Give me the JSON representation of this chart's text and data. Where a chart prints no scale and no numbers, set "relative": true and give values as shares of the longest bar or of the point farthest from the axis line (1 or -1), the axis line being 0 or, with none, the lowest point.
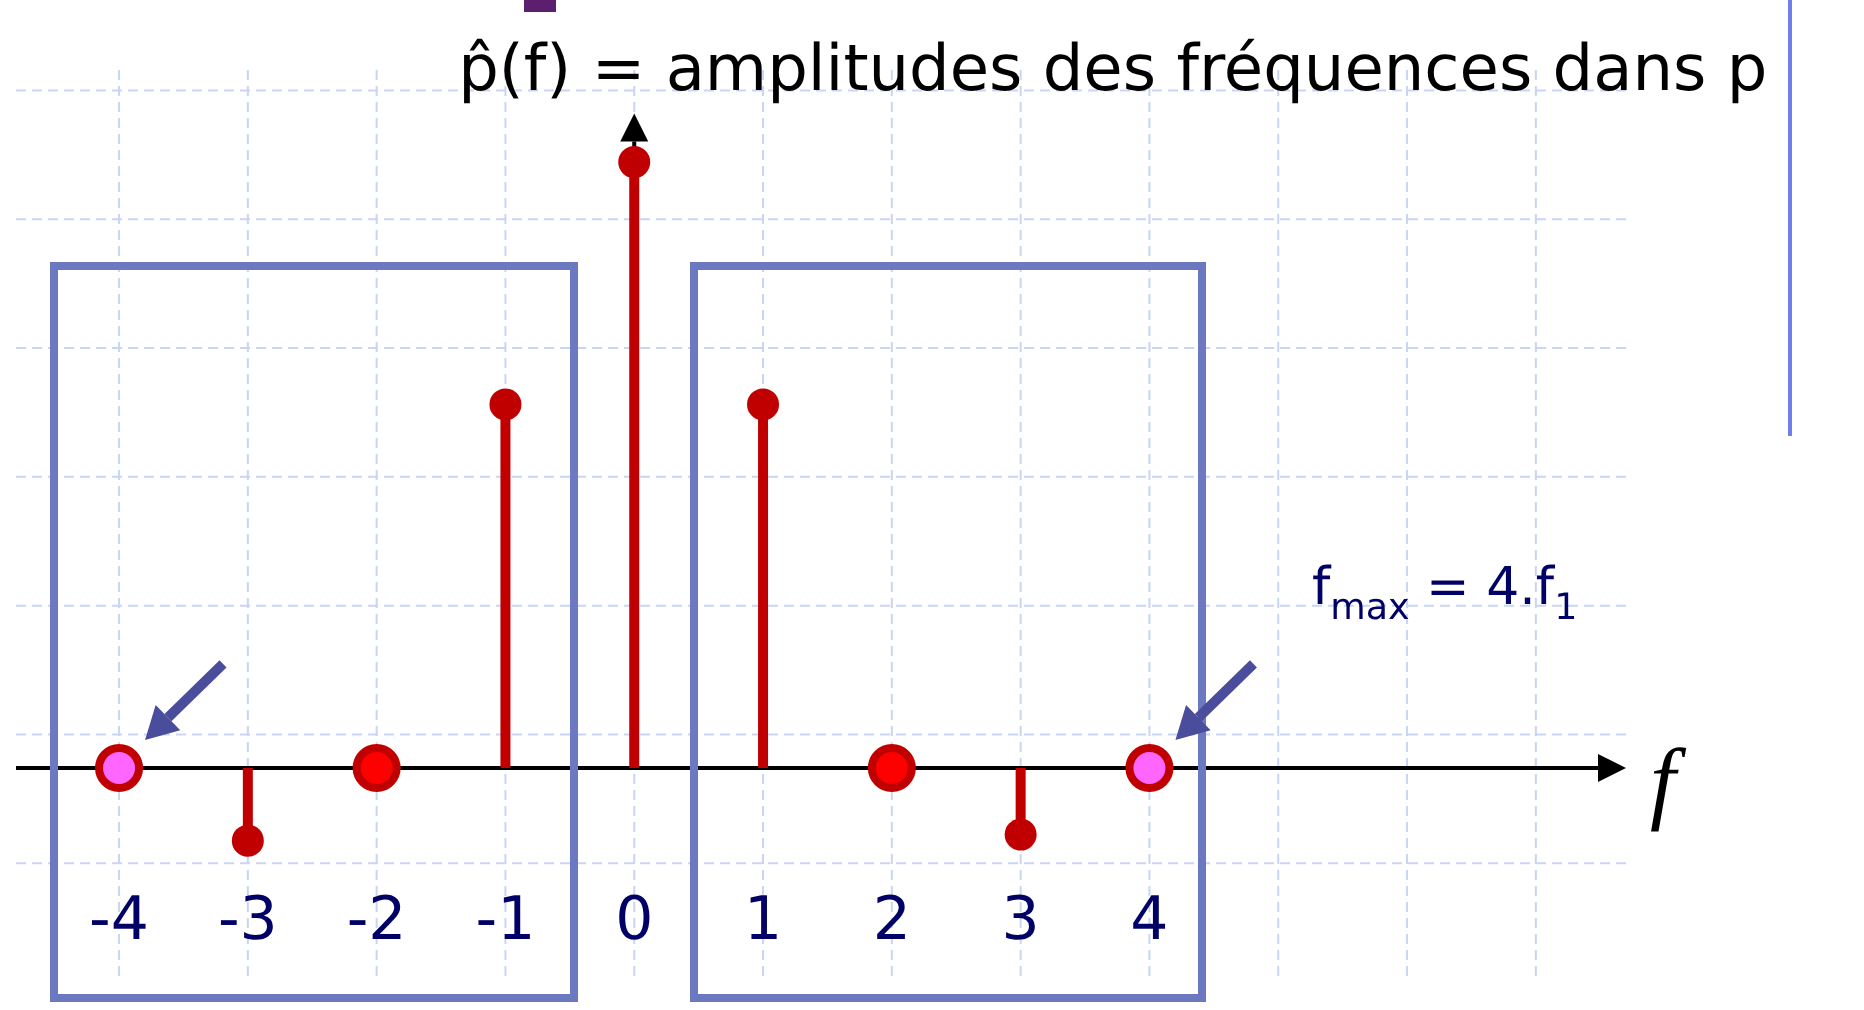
{
  "chart_data": {
    "type": "lollipop",
    "ylabel": "p̂(f) = amplitudes des fréquences dans p",
    "xlabel": "f",
    "relative": true,
    "xlim": [
      -4.8,
      7.7
    ],
    "xticks": [
      -4,
      -3,
      -2,
      -1,
      0,
      1,
      2,
      3,
      4
    ],
    "grid": true,
    "marker": "circle",
    "series": [
      {
        "color": "#c00000",
        "x": [
          -3,
          -1,
          0,
          1,
          3
        ],
        "values": [
          -0.12,
          0.6,
          1,
          0.6,
          -0.11
        ]
      },
      {
        "type": "scatter",
        "color": "#c00000",
        "colors": [
          "#ff66ff",
          "#ff0000",
          "#ff0000",
          "#ff66ff"
        ],
        "x": [
          -4,
          -2,
          2,
          4
        ],
        "values": [
          0,
          0,
          0,
          0
        ]
      }
    ],
    "annotations": [
      "f$_{max}$ = 4.f$_{1}$"
    ]
  }
}
